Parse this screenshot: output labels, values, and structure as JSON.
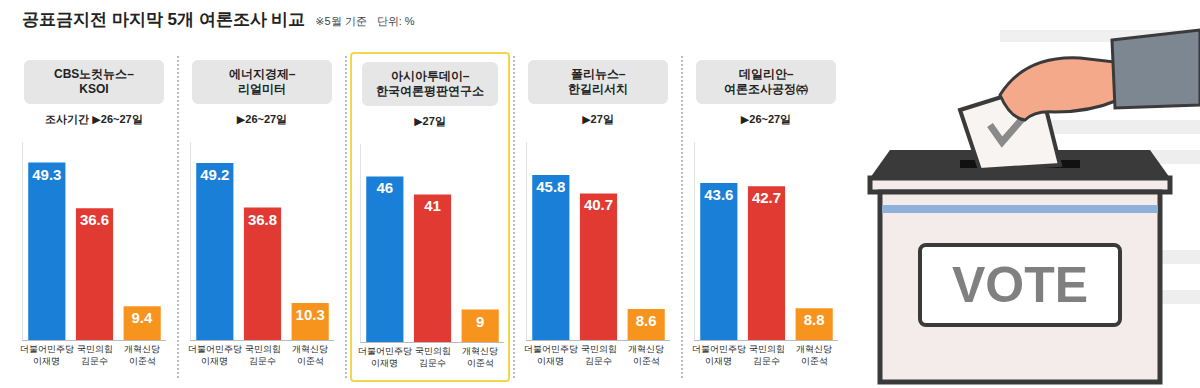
{
  "title": "공표금지전 마지막 5개 여론조사 비교",
  "note": "※5월 기준",
  "unit": "단위: %",
  "graphic_text": "VOTE",
  "chart_data": [
    {
      "type": "bar",
      "title": "CBS노컷뉴스–\nKSOI",
      "subtitle": "조사기간 ▶26~27일",
      "categories": [
        "더불어민주당\n이재명",
        "국민의힘\n김문수",
        "개혁신당\n이준석"
      ],
      "values": [
        49.3,
        36.6,
        9.4
      ],
      "colors": [
        "#1a7fd6",
        "#e03a33",
        "#f7941d"
      ],
      "ylim": [
        0,
        55
      ],
      "yticks": [],
      "data_labels": true,
      "tick_labels": "x",
      "grid": false
    },
    {
      "type": "bar",
      "title": "에너지경제–\n리얼미터",
      "subtitle": "▶26~27일",
      "categories": [
        "더불어민주당\n이재명",
        "국민의힘\n김문수",
        "개혁신당\n이준석"
      ],
      "values": [
        49.2,
        36.8,
        10.3
      ],
      "colors": [
        "#1a7fd6",
        "#e03a33",
        "#f7941d"
      ],
      "ylim": [
        0,
        55
      ],
      "yticks": [],
      "data_labels": true,
      "tick_labels": "x",
      "grid": false
    },
    {
      "type": "bar",
      "title": "아시아투데이–\n한국여론평판연구소",
      "subtitle": "▶27일",
      "categories": [
        "더불어민주당\n이재명",
        "국민의힘\n김문수",
        "개혁신당\n이준석"
      ],
      "values": [
        46,
        41,
        9
      ],
      "colors": [
        "#1a7fd6",
        "#e03a33",
        "#f7941d"
      ],
      "ylim": [
        0,
        55
      ],
      "yticks": [],
      "data_labels": true,
      "tick_labels": "x",
      "grid": false
    },
    {
      "type": "bar",
      "title": "폴리뉴스–\n한길리서치",
      "subtitle": "▶27일",
      "categories": [
        "더불어민주당\n이재명",
        "국민의힘\n김문수",
        "개혁신당\n이준석"
      ],
      "values": [
        45.8,
        40.7,
        8.6
      ],
      "colors": [
        "#1a7fd6",
        "#e03a33",
        "#f7941d"
      ],
      "ylim": [
        0,
        55
      ],
      "yticks": [],
      "data_labels": true,
      "tick_labels": "x",
      "grid": false
    },
    {
      "type": "bar",
      "title": "데일리안–\n여론조사공정㈜",
      "subtitle": "▶26~27일",
      "categories": [
        "더불어민주당\n이재명",
        "국민의힘\n김문수",
        "개혁신당\n이준석"
      ],
      "values": [
        43.6,
        42.7,
        8.8
      ],
      "colors": [
        "#1a7fd6",
        "#e03a33",
        "#f7941d"
      ],
      "ylim": [
        0,
        55
      ],
      "yticks": [],
      "data_labels": true,
      "tick_labels": "x",
      "grid": false
    }
  ]
}
